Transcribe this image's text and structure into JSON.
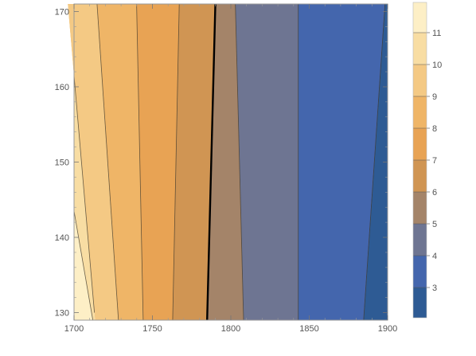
{
  "chart_data": {
    "type": "contour",
    "x_ticks": [
      1700,
      1750,
      1800,
      1850,
      1900
    ],
    "y_ticks": [
      130,
      140,
      150,
      160,
      170
    ],
    "xlim": [
      1700,
      1900
    ],
    "ylim": [
      129,
      171
    ],
    "colorbar": {
      "ticks": [
        3,
        4,
        5,
        6,
        7,
        8,
        9,
        10,
        11
      ],
      "range": [
        2.05,
        11.95
      ],
      "bands": [
        {
          "from": 2,
          "to": 3,
          "color": "#2e5b94"
        },
        {
          "from": 3,
          "to": 4,
          "color": "#4466ad"
        },
        {
          "from": 4,
          "to": 5,
          "color": "#6e7592"
        },
        {
          "from": 5,
          "to": 6,
          "color": "#a48469"
        },
        {
          "from": 6,
          "to": 7,
          "color": "#d09553"
        },
        {
          "from": 7,
          "to": 8,
          "color": "#e8a354"
        },
        {
          "from": 8,
          "to": 9,
          "color": "#efb567"
        },
        {
          "from": 9,
          "to": 10,
          "color": "#f4c984"
        },
        {
          "from": 10,
          "to": 11,
          "color": "#f8dda3"
        },
        {
          "from": 11,
          "to": 12,
          "color": "#fdefc6"
        }
      ]
    },
    "contour_lines": [
      {
        "level": 11,
        "bottom": [
          1700,
          136.5
        ],
        "top": [
          1700,
          136.5
        ],
        "left_y": [
          143.5,
          136.5
        ]
      },
      {
        "level": 10,
        "bottom": [
          1713,
          130
        ],
        "top": [
          1700,
          161.5
        ]
      },
      {
        "level": 9,
        "bottom": [
          1728,
          130
        ],
        "top": [
          1715,
          170
        ]
      },
      {
        "level": 8,
        "bottom": [
          1744,
          130
        ],
        "top": [
          1740,
          170
        ]
      },
      {
        "level": 7,
        "bottom": [
          1763,
          130
        ],
        "top": [
          1767,
          170
        ]
      },
      {
        "level": 6,
        "bottom": [
          1785,
          130
        ],
        "top": [
          1790,
          170
        ],
        "bold": true
      },
      {
        "level": 5,
        "bottom": [
          1808,
          130
        ],
        "top": [
          1803,
          170
        ]
      },
      {
        "level": 4,
        "bottom": [
          1843,
          130
        ],
        "top": [
          1843,
          170
        ]
      },
      {
        "level": 3,
        "bottom": [
          1885,
          130
        ],
        "top": [
          1898,
          170
        ]
      }
    ]
  }
}
